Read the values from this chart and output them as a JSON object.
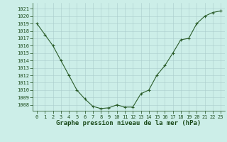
{
  "x": [
    0,
    1,
    2,
    3,
    4,
    5,
    6,
    7,
    8,
    9,
    10,
    11,
    12,
    13,
    14,
    15,
    16,
    17,
    18,
    19,
    20,
    21,
    22,
    23
  ],
  "y": [
    1019,
    1017.5,
    1016,
    1014.0,
    1012,
    1010,
    1008.8,
    1007.8,
    1007.5,
    1007.6,
    1008.0,
    1007.7,
    1007.7,
    1009.5,
    1010.0,
    1012.0,
    1013.3,
    1015.0,
    1016.8,
    1017.0,
    1019.0,
    1020.0,
    1020.5,
    1020.7
  ],
  "line_color": "#2a5c2a",
  "marker": "+",
  "marker_color": "#2a5c2a",
  "bg_color": "#cceee8",
  "grid_major_color": "#aacccc",
  "grid_minor_color": "#bbdddd",
  "xlabel": "Graphe pression niveau de la mer (hPa)",
  "xlabel_color": "#1a4a1a",
  "ylabel_ticks": [
    1008,
    1009,
    1010,
    1011,
    1012,
    1013,
    1014,
    1015,
    1016,
    1017,
    1018,
    1019,
    1020,
    1021
  ],
  "xticks": [
    0,
    1,
    2,
    3,
    4,
    5,
    6,
    7,
    8,
    9,
    10,
    11,
    12,
    13,
    14,
    15,
    16,
    17,
    18,
    19,
    20,
    21,
    22,
    23
  ],
  "ylim": [
    1007.2,
    1021.8
  ],
  "xlim": [
    -0.5,
    23.5
  ],
  "tick_color": "#1a4a1a",
  "tick_fontsize": 5.0,
  "xlabel_fontsize": 6.5,
  "linewidth": 0.8,
  "markersize": 3.5,
  "markerwidth": 0.8
}
